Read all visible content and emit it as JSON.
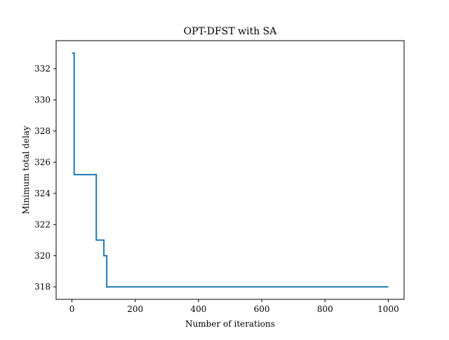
{
  "chart_data": {
    "type": "line",
    "title": "OPT-DFST with SA",
    "xlabel": "Number of iterations",
    "ylabel": "Minimum total delay",
    "xlim": [
      -50,
      1050
    ],
    "ylim": [
      317.2,
      333.8
    ],
    "xticks": [
      0,
      200,
      400,
      600,
      800,
      1000
    ],
    "yticks": [
      318,
      320,
      322,
      324,
      326,
      328,
      330,
      332
    ],
    "grid": false,
    "legend": "none",
    "series": [
      {
        "color": "#1f77b4",
        "step": "post",
        "x": [
          0,
          7,
          77,
          101,
          110,
          1000
        ],
        "y": [
          333.0,
          325.2,
          321.0,
          320.0,
          318.0,
          318.0
        ]
      }
    ]
  }
}
